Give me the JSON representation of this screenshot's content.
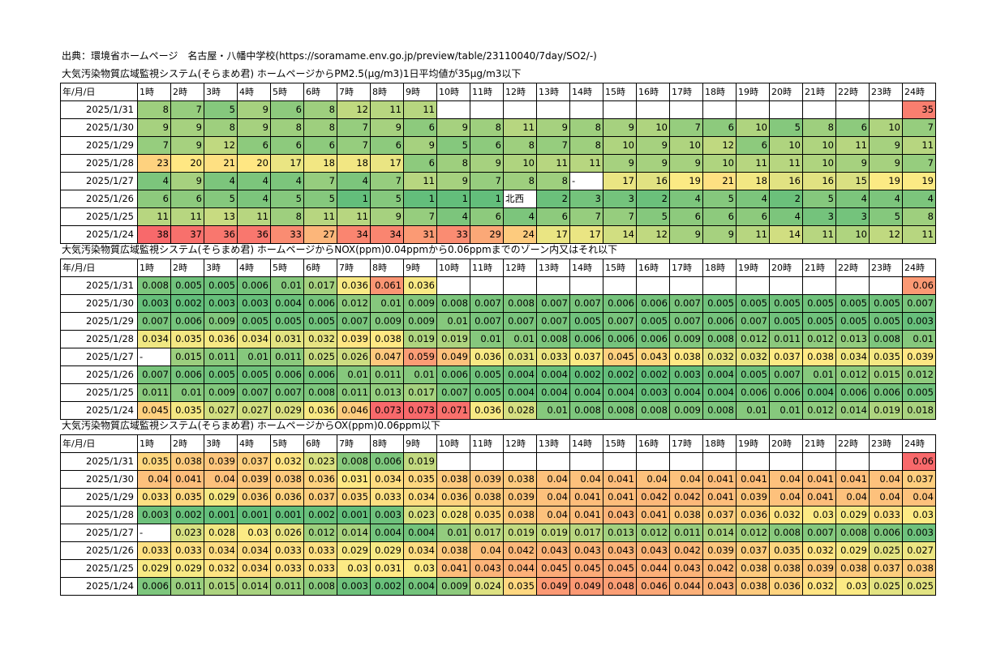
{
  "source": "出典：環境省ホームページ　名古屋・八幡中学校(https://soramame.env.go.jp/preview/table/23110040/7day/SO2/-)",
  "sections": [
    {
      "id": "pm",
      "title": "大気汚染物質広域監視システム(そらまめ君) ホームページからPM2.5(μg/m3)1日平均値が35μg/m3以下",
      "header": [
        "年/月/日",
        "1時",
        "2時",
        "3時",
        "4時",
        "5時",
        "6時",
        "7時",
        "8時",
        "9時",
        "10時",
        "11時",
        "12時",
        "13時",
        "14時",
        "15時",
        "16時",
        "17時",
        "18時",
        "19時",
        "20時",
        "21時",
        "22時",
        "23時",
        "24時"
      ],
      "rows": [
        {
          "date": "2025/1/31",
          "values": [
            "8",
            "7",
            "5",
            "9",
            "6",
            "8",
            "12",
            "11",
            "11",
            "",
            "",
            "",
            "",
            "",
            "",
            "",
            "",
            "",
            "",
            "",
            "",
            "",
            "",
            "35"
          ]
        },
        {
          "date": "2025/1/30",
          "values": [
            "9",
            "9",
            "8",
            "9",
            "8",
            "8",
            "7",
            "9",
            "6",
            "9",
            "8",
            "11",
            "9",
            "8",
            "9",
            "10",
            "7",
            "6",
            "10",
            "5",
            "8",
            "6",
            "10",
            "7"
          ]
        },
        {
          "date": "2025/1/29",
          "values": [
            "7",
            "9",
            "12",
            "6",
            "6",
            "6",
            "7",
            "6",
            "9",
            "5",
            "6",
            "8",
            "7",
            "8",
            "10",
            "9",
            "10",
            "12",
            "6",
            "10",
            "10",
            "11",
            "9",
            "11"
          ]
        },
        {
          "date": "2025/1/28",
          "values": [
            "23",
            "20",
            "21",
            "20",
            "17",
            "18",
            "18",
            "17",
            "6",
            "8",
            "9",
            "10",
            "11",
            "11",
            "9",
            "9",
            "9",
            "10",
            "11",
            "11",
            "10",
            "9",
            "9",
            "7"
          ]
        },
        {
          "date": "2025/1/27",
          "values": [
            "4",
            "9",
            "4",
            "4",
            "4",
            "7",
            "4",
            "7",
            "11",
            "9",
            "7",
            "8",
            "8",
            "-",
            "17",
            "16",
            "19",
            "21",
            "18",
            "16",
            "16",
            "15",
            "19",
            "19"
          ]
        },
        {
          "date": "2025/1/26",
          "values": [
            "6",
            "6",
            "5",
            "4",
            "5",
            "5",
            "1",
            "5",
            "1",
            "1",
            "1",
            "北西",
            "2",
            "3",
            "3",
            "2",
            "4",
            "5",
            "4",
            "2",
            "5",
            "4",
            "4",
            "4"
          ]
        },
        {
          "date": "2025/1/25",
          "values": [
            "11",
            "11",
            "13",
            "11",
            "8",
            "11",
            "11",
            "9",
            "7",
            "4",
            "6",
            "4",
            "6",
            "7",
            "7",
            "5",
            "6",
            "6",
            "6",
            "4",
            "3",
            "3",
            "5",
            "8"
          ]
        },
        {
          "date": "2025/1/24",
          "values": [
            "38",
            "37",
            "36",
            "36",
            "33",
            "27",
            "34",
            "34",
            "31",
            "33",
            "29",
            "24",
            "17",
            "17",
            "14",
            "12",
            "9",
            "9",
            "11",
            "14",
            "11",
            "10",
            "12",
            "11"
          ]
        }
      ]
    },
    {
      "id": "nox",
      "title": "大気汚染物質広域監視システム(そらまめ君) ホームページからNOX(ppm)0.04ppmから0.06ppmまでのゾーン内又はそれ以下",
      "header": [
        "年/月/日",
        "1時",
        "2時",
        "3時",
        "4時",
        "5時",
        "6時",
        "7時",
        "8時",
        "9時",
        "10時",
        "11時",
        "12時",
        "13時",
        "14時",
        "15時",
        "16時",
        "17時",
        "18時",
        "19時",
        "20時",
        "21時",
        "22時",
        "23時",
        "24時"
      ],
      "rows": [
        {
          "date": "2025/1/31",
          "values": [
            "0.008",
            "0.005",
            "0.005",
            "0.006",
            "0.01",
            "0.017",
            "0.036",
            "0.061",
            "0.036",
            "",
            "",
            "",
            "",
            "",
            "",
            "",
            "",
            "",
            "",
            "",
            "",
            "",
            "",
            "0.06"
          ]
        },
        {
          "date": "2025/1/30",
          "values": [
            "0.003",
            "0.002",
            "0.003",
            "0.003",
            "0.004",
            "0.006",
            "0.012",
            "0.01",
            "0.009",
            "0.008",
            "0.007",
            "0.008",
            "0.007",
            "0.007",
            "0.006",
            "0.006",
            "0.007",
            "0.005",
            "0.005",
            "0.005",
            "0.005",
            "0.005",
            "0.005",
            "0.007"
          ]
        },
        {
          "date": "2025/1/29",
          "values": [
            "0.007",
            "0.006",
            "0.009",
            "0.005",
            "0.005",
            "0.005",
            "0.007",
            "0.009",
            "0.009",
            "0.01",
            "0.007",
            "0.007",
            "0.007",
            "0.005",
            "0.007",
            "0.005",
            "0.007",
            "0.006",
            "0.007",
            "0.005",
            "0.005",
            "0.005",
            "0.005",
            "0.003"
          ]
        },
        {
          "date": "2025/1/28",
          "values": [
            "0.034",
            "0.035",
            "0.036",
            "0.034",
            "0.031",
            "0.032",
            "0.039",
            "0.038",
            "0.019",
            "0.019",
            "0.01",
            "0.01",
            "0.008",
            "0.006",
            "0.006",
            "0.006",
            "0.009",
            "0.008",
            "0.012",
            "0.011",
            "0.012",
            "0.013",
            "0.008",
            "0.01"
          ]
        },
        {
          "date": "2025/1/27",
          "values": [
            "-",
            "0.015",
            "0.011",
            "0.01",
            "0.011",
            "0.025",
            "0.026",
            "0.047",
            "0.059",
            "0.049",
            "0.036",
            "0.031",
            "0.033",
            "0.037",
            "0.045",
            "0.043",
            "0.038",
            "0.032",
            "0.032",
            "0.037",
            "0.038",
            "0.034",
            "0.035",
            "0.039"
          ]
        },
        {
          "date": "2025/1/26",
          "values": [
            "0.007",
            "0.006",
            "0.005",
            "0.005",
            "0.006",
            "0.006",
            "0.01",
            "0.011",
            "0.01",
            "0.006",
            "0.005",
            "0.004",
            "0.004",
            "0.002",
            "0.002",
            "0.002",
            "0.003",
            "0.004",
            "0.005",
            "0.007",
            "0.01",
            "0.012",
            "0.015",
            "0.012"
          ]
        },
        {
          "date": "2025/1/25",
          "values": [
            "0.011",
            "0.01",
            "0.009",
            "0.007",
            "0.007",
            "0.008",
            "0.011",
            "0.013",
            "0.017",
            "0.007",
            "0.005",
            "0.004",
            "0.004",
            "0.004",
            "0.004",
            "0.003",
            "0.004",
            "0.004",
            "0.006",
            "0.006",
            "0.004",
            "0.006",
            "0.006",
            "0.005"
          ]
        },
        {
          "date": "2025/1/24",
          "values": [
            "0.045",
            "0.035",
            "0.027",
            "0.027",
            "0.029",
            "0.036",
            "0.046",
            "0.073",
            "0.073",
            "0.071",
            "0.036",
            "0.028",
            "0.01",
            "0.008",
            "0.008",
            "0.008",
            "0.009",
            "0.008",
            "0.01",
            "0.01",
            "0.012",
            "0.014",
            "0.019",
            "0.018"
          ]
        }
      ]
    },
    {
      "id": "ox",
      "title": "大気汚染物質広域監視システム(そらまめ君) ホームページからOX(ppm)0.06ppm以下",
      "header": [
        "年/月/日",
        "1時",
        "2時",
        "3時",
        "4時",
        "5時",
        "6時",
        "7時",
        "8時",
        "9時",
        "10時",
        "11時",
        "12時",
        "13時",
        "14時",
        "15時",
        "16時",
        "17時",
        "18時",
        "19時",
        "20時",
        "21時",
        "22時",
        "23時",
        "24時"
      ],
      "rows": [
        {
          "date": "2025/1/31",
          "values": [
            "0.035",
            "0.038",
            "0.039",
            "0.037",
            "0.032",
            "0.023",
            "0.008",
            "0.006",
            "0.019",
            "",
            "",
            "",
            "",
            "",
            "",
            "",
            "",
            "",
            "",
            "",
            "",
            "",
            "",
            "0.06"
          ]
        },
        {
          "date": "2025/1/30",
          "values": [
            "0.04",
            "0.041",
            "0.04",
            "0.039",
            "0.038",
            "0.036",
            "0.031",
            "0.034",
            "0.035",
            "0.038",
            "0.039",
            "0.038",
            "0.04",
            "0.04",
            "0.041",
            "0.04",
            "0.04",
            "0.041",
            "0.041",
            "0.04",
            "0.041",
            "0.041",
            "0.04",
            "0.037"
          ]
        },
        {
          "date": "2025/1/29",
          "values": [
            "0.033",
            "0.035",
            "0.029",
            "0.036",
            "0.036",
            "0.037",
            "0.035",
            "0.033",
            "0.034",
            "0.036",
            "0.038",
            "0.039",
            "0.04",
            "0.041",
            "0.041",
            "0.042",
            "0.042",
            "0.041",
            "0.039",
            "0.04",
            "0.041",
            "0.04",
            "0.04",
            "0.04"
          ]
        },
        {
          "date": "2025/1/28",
          "values": [
            "0.003",
            "0.002",
            "0.001",
            "0.001",
            "0.001",
            "0.002",
            "0.001",
            "0.003",
            "0.023",
            "0.028",
            "0.035",
            "0.038",
            "0.04",
            "0.041",
            "0.043",
            "0.041",
            "0.038",
            "0.037",
            "0.036",
            "0.032",
            "0.03",
            "0.029",
            "0.033",
            "0.03"
          ]
        },
        {
          "date": "2025/1/27",
          "values": [
            "-",
            "0.023",
            "0.028",
            "0.03",
            "0.026",
            "0.012",
            "0.014",
            "0.004",
            "0.004",
            "0.01",
            "0.017",
            "0.019",
            "0.019",
            "0.017",
            "0.013",
            "0.012",
            "0.011",
            "0.014",
            "0.012",
            "0.008",
            "0.007",
            "0.008",
            "0.006",
            "0.003"
          ]
        },
        {
          "date": "2025/1/26",
          "values": [
            "0.033",
            "0.033",
            "0.034",
            "0.034",
            "0.033",
            "0.033",
            "0.029",
            "0.029",
            "0.034",
            "0.038",
            "0.04",
            "0.042",
            "0.043",
            "0.043",
            "0.043",
            "0.043",
            "0.042",
            "0.039",
            "0.037",
            "0.035",
            "0.032",
            "0.029",
            "0.025",
            "0.027"
          ]
        },
        {
          "date": "2025/1/25",
          "values": [
            "0.029",
            "0.029",
            "0.032",
            "0.034",
            "0.033",
            "0.033",
            "0.03",
            "0.031",
            "0.03",
            "0.041",
            "0.043",
            "0.044",
            "0.045",
            "0.045",
            "0.045",
            "0.044",
            "0.043",
            "0.042",
            "0.038",
            "0.038",
            "0.039",
            "0.038",
            "0.037",
            "0.038"
          ]
        },
        {
          "date": "2025/1/24",
          "values": [
            "0.006",
            "0.011",
            "0.015",
            "0.014",
            "0.011",
            "0.008",
            "0.003",
            "0.002",
            "0.004",
            "0.009",
            "0.024",
            "0.035",
            "0.049",
            "0.049",
            "0.048",
            "0.046",
            "0.044",
            "0.043",
            "0.038",
            "0.036",
            "0.032",
            "0.03",
            "0.025",
            "0.025"
          ]
        }
      ]
    }
  ],
  "color_scale": {
    "low": "#63be7b",
    "mid": "#ffeb84",
    "high": "#f8696b"
  }
}
